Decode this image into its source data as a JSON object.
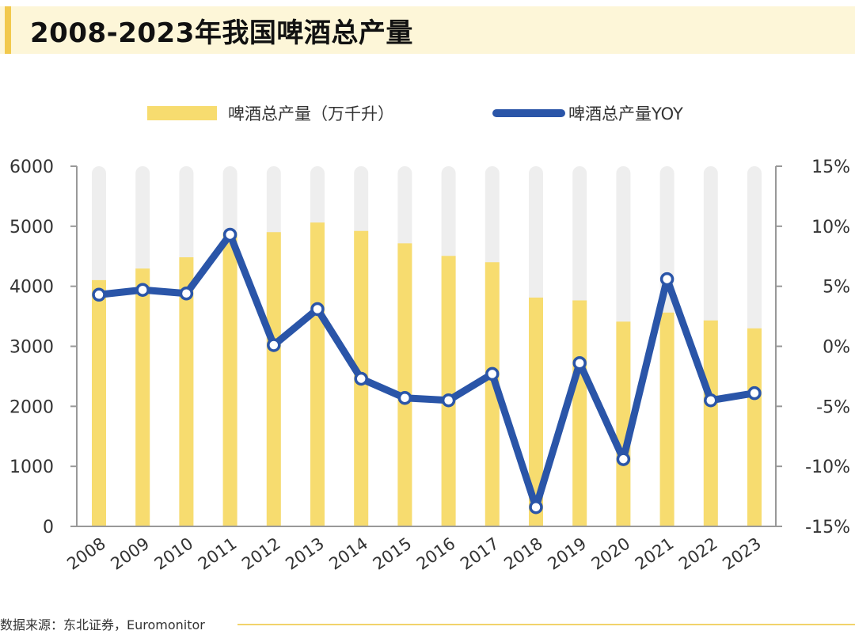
{
  "title": "2008-2023年我国啤酒总产量",
  "legend": {
    "bar_label": "啤酒总产量（万千升）",
    "line_label": "啤酒总产量YOY"
  },
  "source": "数据来源：东北证券，Euromonitor",
  "colors": {
    "bar": "#f7dc6f",
    "bar_background": "#eeeeee",
    "line": "#2a55a8",
    "axis": "#999999",
    "title_bg": "#fdf6d8",
    "title_accent": "#f2c94c"
  },
  "chart_data": {
    "type": "bar",
    "categories": [
      "2008",
      "2009",
      "2010",
      "2011",
      "2012",
      "2013",
      "2014",
      "2015",
      "2016",
      "2017",
      "2018",
      "2019",
      "2020",
      "2021",
      "2022",
      "2023"
    ],
    "series": [
      {
        "name": "啤酒总产量（万千升）",
        "type": "bar",
        "axis": "left",
        "values": [
          4103,
          4295,
          4483,
          4899,
          4902,
          5062,
          4922,
          4716,
          4506,
          4401,
          3812,
          3765,
          3411,
          3562,
          3431,
          3299
        ]
      },
      {
        "name": "啤酒总产量YOY",
        "type": "line",
        "axis": "right",
        "values": [
          4.3,
          4.7,
          4.4,
          9.3,
          0.1,
          3.1,
          -2.7,
          -4.3,
          -4.5,
          -2.3,
          -13.4,
          -1.4,
          -9.4,
          5.6,
          -4.5,
          -3.9
        ]
      }
    ],
    "left_axis": {
      "min": 0,
      "max": 6000,
      "ticks": [
        "0",
        "1000",
        "2000",
        "3000",
        "4000",
        "5000",
        "6000"
      ]
    },
    "right_axis": {
      "min": -15,
      "max": 15,
      "ticks": [
        "-15%",
        "-10%",
        "-5%",
        "0%",
        "5%",
        "10%",
        "15%"
      ]
    }
  }
}
